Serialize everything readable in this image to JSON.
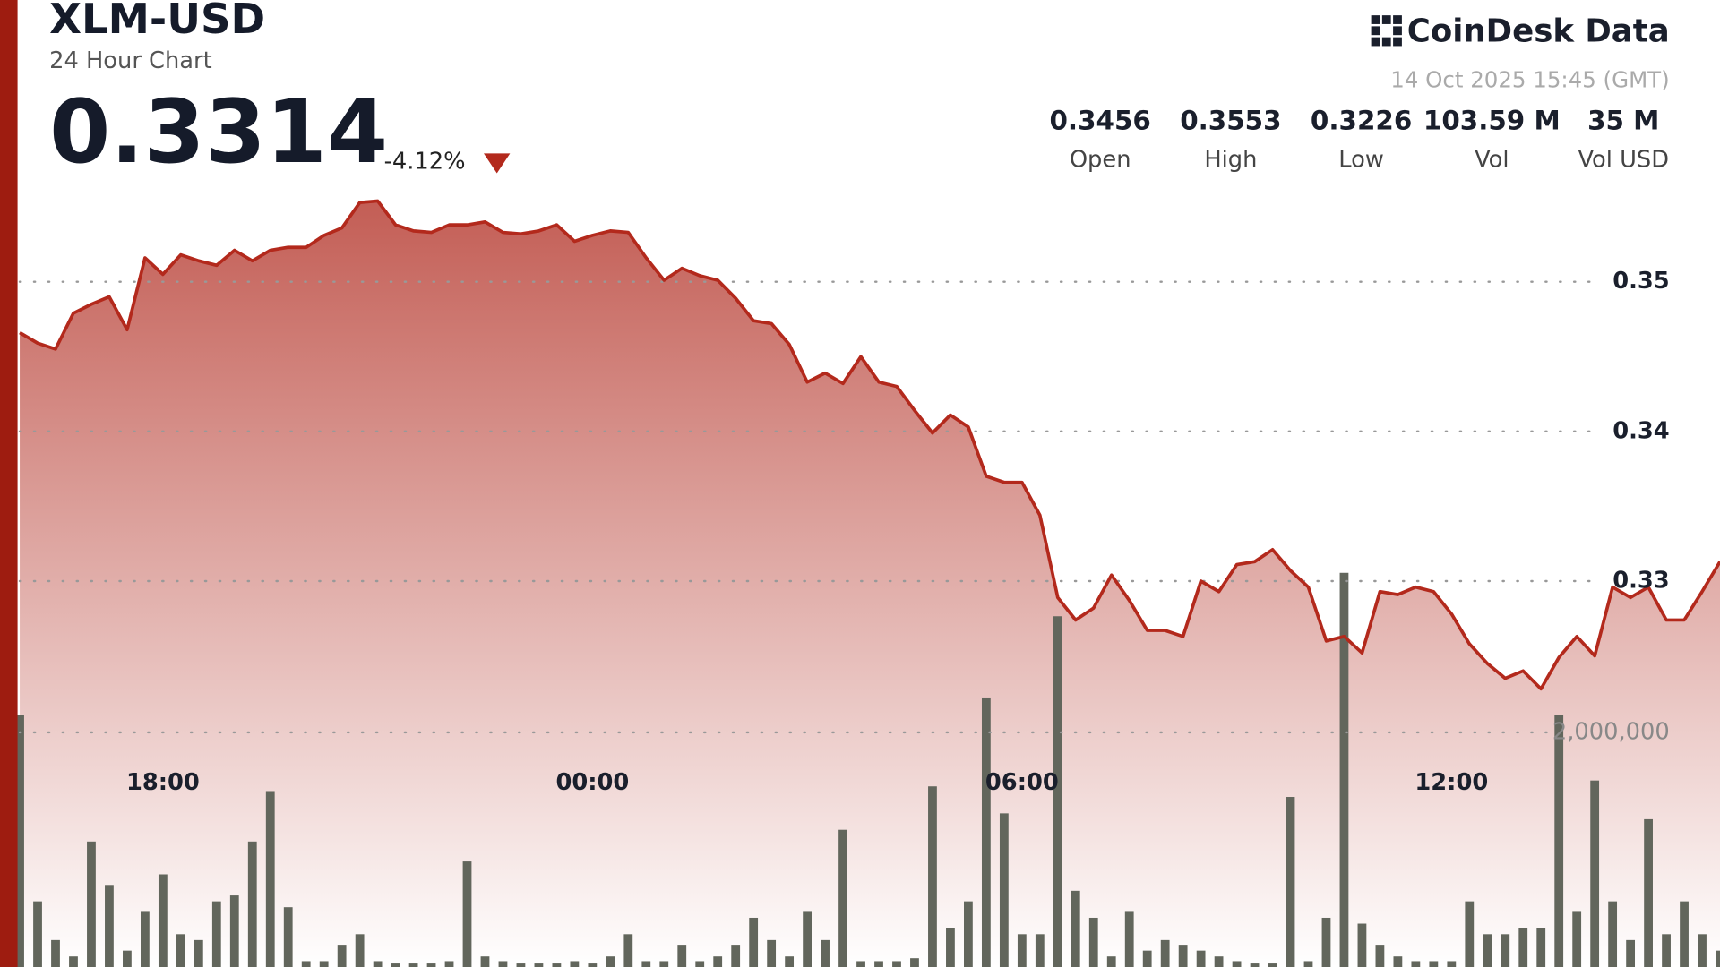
{
  "header": {
    "pair": "XLM-USD",
    "subtitle": "24 Hour Chart",
    "price": "0.3314",
    "change": "-4.12%",
    "brand": "CoinDesk Data",
    "timestamp": "14 Oct 2025 15:45 (GMT)"
  },
  "stats": [
    {
      "value": "0.3456",
      "label": "Open"
    },
    {
      "value": "0.3553",
      "label": "High"
    },
    {
      "value": "0.3226",
      "label": "Low"
    },
    {
      "value": "103.59 M",
      "label": "Vol"
    },
    {
      "value": "35 M",
      "label": "Vol USD"
    }
  ],
  "chart_data": {
    "type": "line",
    "categories": [
      null,
      null,
      null,
      null,
      null,
      null,
      null,
      null,
      "18:00",
      null,
      null,
      null,
      null,
      null,
      null,
      null,
      null,
      null,
      null,
      null,
      null,
      null,
      null,
      null,
      null,
      null,
      null,
      null,
      null,
      null,
      null,
      null,
      "00:00",
      null,
      null,
      null,
      null,
      null,
      null,
      null,
      null,
      null,
      null,
      null,
      null,
      null,
      null,
      null,
      null,
      null,
      null,
      null,
      null,
      null,
      null,
      null,
      "06:00",
      null,
      null,
      null,
      null,
      null,
      null,
      null,
      null,
      null,
      null,
      null,
      null,
      null,
      null,
      null,
      null,
      null,
      null,
      null,
      null,
      null,
      null,
      null,
      "12:00",
      null,
      null,
      null,
      null,
      null,
      null,
      null,
      null,
      null,
      null,
      null,
      null,
      null,
      null,
      null
    ],
    "series": [
      {
        "color": "#b3291c",
        "values": [
          0.3466,
          0.3459,
          0.3455,
          0.3479,
          0.3485,
          0.349,
          0.3468,
          0.3516,
          0.3505,
          0.3518,
          0.3514,
          0.3511,
          0.3521,
          0.3514,
          0.3521,
          0.3523,
          0.3523,
          0.3531,
          0.3536,
          0.3553,
          0.3554,
          0.3538,
          0.3534,
          0.3533,
          0.3538,
          0.3538,
          0.354,
          0.3533,
          0.3532,
          0.3534,
          0.3538,
          0.3527,
          0.3531,
          0.3534,
          0.3533,
          0.3516,
          0.3501,
          0.3509,
          0.3504,
          0.3501,
          0.3489,
          0.3474,
          0.3472,
          0.3458,
          0.3433,
          0.3439,
          0.3432,
          0.345,
          0.3433,
          0.343,
          0.3414,
          0.3399,
          0.3411,
          0.3403,
          0.337,
          0.3366,
          0.3366,
          0.3344,
          0.3289,
          0.3274,
          0.3282,
          0.3304,
          0.3287,
          0.3267,
          0.3267,
          0.3263,
          0.33,
          0.3293,
          0.3311,
          0.3313,
          0.3321,
          0.3307,
          0.3296,
          0.326,
          0.3263,
          0.3252,
          0.3293,
          0.3291,
          0.3296,
          0.3293,
          0.3278,
          0.3258,
          0.3245,
          0.3235,
          0.324,
          0.3228,
          0.3249,
          0.3263,
          0.325,
          0.3296,
          0.3289,
          0.3296,
          0.3274,
          0.3274,
          0.3293,
          0.3313
        ]
      },
      {
        "type": "bar",
        "axis": "y2",
        "color": "#62665c",
        "values": [
          2150000,
          560000,
          230000,
          90000,
          1070000,
          700000,
          140000,
          470000,
          790000,
          280000,
          230000,
          560000,
          610000,
          1070000,
          1500000,
          510000,
          50000,
          50000,
          190000,
          280000,
          50000,
          30000,
          30000,
          30000,
          50000,
          900000,
          90000,
          50000,
          30000,
          30000,
          30000,
          50000,
          30000,
          90000,
          280000,
          50000,
          50000,
          190000,
          50000,
          90000,
          190000,
          420000,
          230000,
          90000,
          470000,
          230000,
          1170000,
          50000,
          50000,
          50000,
          75000,
          1540000,
          330000,
          560000,
          2290000,
          1310000,
          280000,
          280000,
          2990000,
          650000,
          420000,
          90000,
          470000,
          140000,
          230000,
          190000,
          140000,
          90000,
          50000,
          30000,
          30000,
          1450000,
          50000,
          420000,
          3360000,
          370000,
          190000,
          90000,
          50000,
          50000,
          50000,
          560000,
          280000,
          280000,
          330000,
          330000,
          2150000,
          470000,
          1590000,
          560000,
          230000,
          1260000,
          280000,
          560000,
          280000,
          140000
        ]
      }
    ],
    "ylim": [
      0.31,
      0.36
    ],
    "yticks": [
      0.33,
      0.34,
      0.35
    ],
    "y2lim": [
      0,
      4000000
    ],
    "y2ticks": [
      {
        "value": 2000000,
        "label": "2,000,000"
      }
    ],
    "grid": true
  }
}
